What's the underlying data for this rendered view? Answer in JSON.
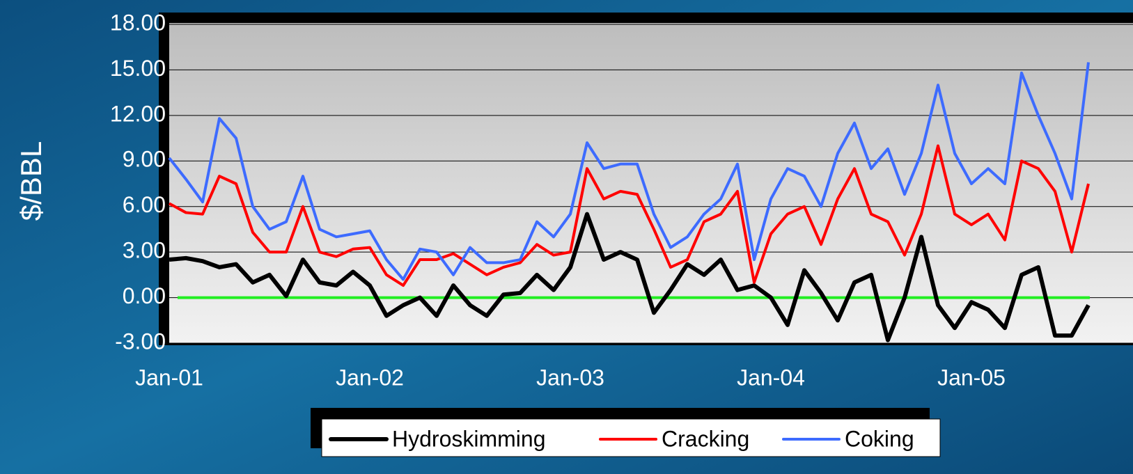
{
  "chart_data": {
    "type": "line",
    "y_label": "$/BBL",
    "categories": [
      "Jan-01",
      null,
      null,
      null,
      null,
      null,
      null,
      null,
      null,
      null,
      null,
      null,
      "Jan-02",
      null,
      null,
      null,
      null,
      null,
      null,
      null,
      null,
      null,
      null,
      null,
      "Jan-03",
      null,
      null,
      null,
      null,
      null,
      null,
      null,
      null,
      null,
      null,
      null,
      "Jan-04",
      null,
      null,
      null,
      null,
      null,
      null,
      null,
      null,
      null,
      null,
      null,
      "Jan-05",
      null,
      null,
      null,
      null,
      null,
      null,
      null
    ],
    "series": [
      {
        "name": "Hydroskimming",
        "color": "#000000",
        "values": [
          2.5,
          2.6,
          2.4,
          2.0,
          2.2,
          1.0,
          1.5,
          0.1,
          2.5,
          1.0,
          0.8,
          1.7,
          0.8,
          -1.2,
          -0.5,
          0.0,
          -1.2,
          0.8,
          -0.5,
          -1.2,
          0.2,
          0.3,
          1.5,
          0.5,
          2.0,
          5.5,
          2.5,
          3.0,
          2.5,
          -1.0,
          0.5,
          2.2,
          1.5,
          2.5,
          0.5,
          0.8,
          0.0,
          -1.8,
          1.8,
          0.3,
          -1.5,
          1.0,
          1.5,
          -2.8,
          0.0,
          4.0,
          -0.5,
          -2.0,
          -0.3,
          -0.8,
          -2.0,
          1.5,
          2.0,
          -2.5,
          -2.5,
          -0.5
        ]
      },
      {
        "name": "Cracking",
        "color": "#ff0000",
        "values": [
          6.2,
          5.6,
          5.5,
          8.0,
          7.5,
          4.3,
          3.0,
          3.0,
          6.0,
          3.0,
          2.7,
          3.2,
          3.3,
          1.5,
          0.8,
          2.5,
          2.5,
          2.9,
          2.2,
          1.5,
          2.0,
          2.3,
          3.5,
          2.8,
          3.0,
          8.5,
          6.5,
          7.0,
          6.8,
          4.5,
          2.0,
          2.5,
          5.0,
          5.5,
          7.0,
          1.0,
          4.2,
          5.5,
          6.0,
          3.5,
          6.5,
          8.5,
          5.5,
          5.0,
          2.8,
          5.5,
          10.0,
          5.5,
          4.8,
          5.5,
          3.8,
          9.0,
          8.5,
          7.0,
          3.0,
          7.5
        ]
      },
      {
        "name": "Coking",
        "color": "#3d6bff",
        "values": [
          9.2,
          7.8,
          6.3,
          11.8,
          10.5,
          6.0,
          4.5,
          5.0,
          8.0,
          4.5,
          4.0,
          4.2,
          4.4,
          2.5,
          1.2,
          3.2,
          3.0,
          1.5,
          3.3,
          2.3,
          2.3,
          2.5,
          5.0,
          4.0,
          5.5,
          10.2,
          8.5,
          8.8,
          8.8,
          5.5,
          3.3,
          4.0,
          5.5,
          6.5,
          8.8,
          2.5,
          6.5,
          8.5,
          8.0,
          6.0,
          9.5,
          11.5,
          8.5,
          9.8,
          6.8,
          9.5,
          14.0,
          9.5,
          7.5,
          8.5,
          7.5,
          14.8,
          12.0,
          9.5,
          6.5,
          15.5
        ]
      }
    ],
    "baseline": {
      "value": 0,
      "color": "#22ee22"
    },
    "ylim": [
      -3,
      18
    ],
    "yticks": [
      {
        "value": -3,
        "label": "-3.00"
      },
      {
        "value": 0,
        "label": "0.00"
      },
      {
        "value": 3,
        "label": "3.00"
      },
      {
        "value": 6,
        "label": "6.00"
      },
      {
        "value": 9,
        "label": "9.00"
      },
      {
        "value": 12,
        "label": "12.00"
      },
      {
        "value": 15,
        "label": "15.00"
      },
      {
        "value": 18,
        "label": "18.00"
      }
    ],
    "grid": true,
    "legend": "bottom"
  }
}
